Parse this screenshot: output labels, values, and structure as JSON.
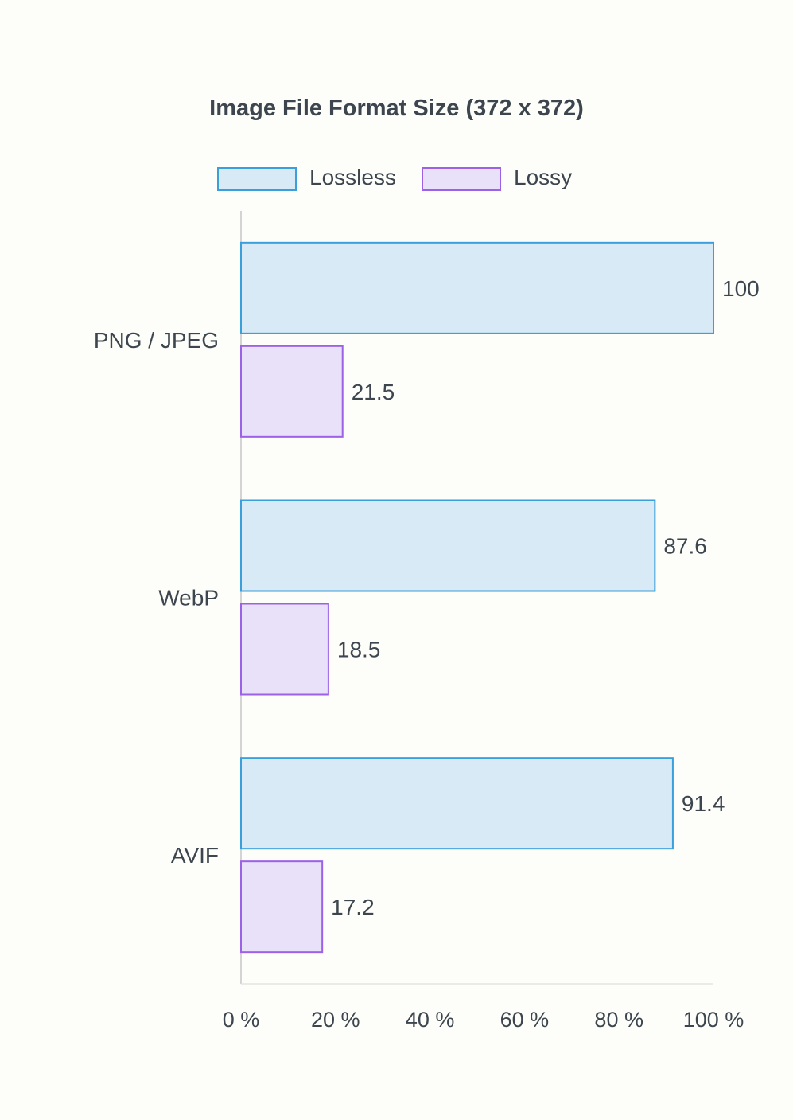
{
  "chart_data": {
    "type": "bar",
    "orientation": "horizontal",
    "title": "Image File Format Size (372 x 372)",
    "categories": [
      "PNG / JPEG",
      "WebP",
      "AVIF"
    ],
    "series": [
      {
        "name": "Lossless",
        "values": [
          100,
          87.6,
          91.4
        ],
        "fill": "#d8eaf6",
        "stroke": "#3a9fdb"
      },
      {
        "name": "Lossy",
        "values": [
          21.5,
          18.5,
          17.2
        ],
        "fill": "#e9e0f9",
        "stroke": "#9b61e6"
      }
    ],
    "value_labels": {
      "Lossless": [
        "100",
        "87.6",
        "91.4"
      ],
      "Lossy": [
        "21.5",
        "18.5",
        "17.2"
      ]
    },
    "xlim": [
      0,
      100
    ],
    "x_ticks": [
      0,
      20,
      40,
      60,
      80,
      100
    ],
    "x_tick_labels": [
      "0 %",
      "20 %",
      "40 %",
      "60 %",
      "80 %",
      "100 %"
    ],
    "xlabel": "",
    "ylabel": "",
    "grid": false,
    "legend_position": "top-center"
  }
}
